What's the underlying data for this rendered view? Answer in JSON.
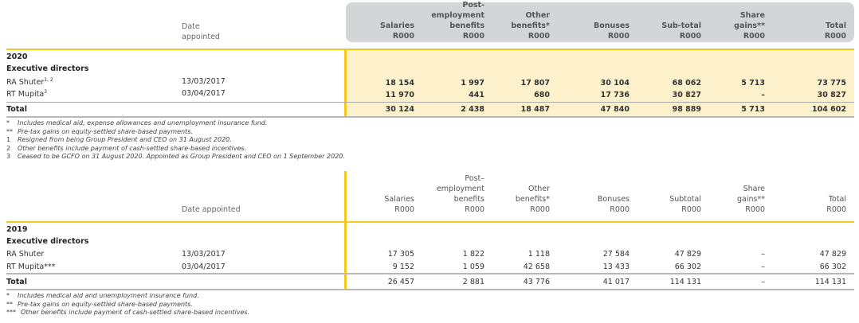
{
  "table_2020": {
    "date_header": [
      "Date",
      "appointed"
    ],
    "columns": [
      {
        "lines": [
          "Salaries",
          "R000"
        ]
      },
      {
        "lines": [
          "Post-",
          "employment",
          "benefits",
          "R000"
        ]
      },
      {
        "lines": [
          "Other",
          "benefits*",
          "R000"
        ]
      },
      {
        "lines": [
          "Bonuses",
          "R000"
        ]
      },
      {
        "lines": [
          "Sub-total",
          "R000"
        ]
      },
      {
        "lines": [
          "Share",
          "gains**",
          "R000"
        ]
      },
      {
        "lines": [
          "Total",
          "R000"
        ]
      }
    ],
    "year": "2020",
    "section": "Executive directors",
    "rows": [
      {
        "name": "RA Shuter",
        "sup": "1, 2",
        "date": "13/03/2017",
        "values": [
          "18 154",
          "1 997",
          "17 807",
          "30 104",
          "68 062",
          "5 713",
          "73 775"
        ]
      },
      {
        "name": "RT Mupita",
        "sup": "3",
        "date": "03/04/2017",
        "values": [
          "11 970",
          "441",
          "680",
          "17 736",
          "30 827",
          "–",
          "30 827"
        ]
      }
    ],
    "total": {
      "label": "Total",
      "values": [
        "30 124",
        "2 438",
        "18 487",
        "47 840",
        "98 889",
        "5 713",
        "104 602"
      ]
    },
    "footnotes": [
      {
        "mark": "*",
        "text": "Includes medical aid, expense allowances and unemployment insurance fund."
      },
      {
        "mark": "**",
        "text": "Pre-tax gains on equity-settled share-based payments."
      },
      {
        "mark": "1",
        "text": "Resigned from being Group President and CEO on 31 August 2020."
      },
      {
        "mark": "2",
        "text": "Other benefits include payment of cash-settled share-based incentives."
      },
      {
        "mark": "3",
        "text": "Ceased to be GCFO on 31 August 2020. Appointed as Group President and CEO on 1 September 2020."
      }
    ]
  },
  "table_2019": {
    "date_header": [
      "Date appointed"
    ],
    "columns": [
      {
        "lines": [
          "Salaries",
          "R000"
        ]
      },
      {
        "lines": [
          "Post–",
          "employment",
          "benefits",
          "R000"
        ]
      },
      {
        "lines": [
          "Other",
          "benefits*",
          "R000"
        ]
      },
      {
        "lines": [
          "Bonuses",
          "R000"
        ]
      },
      {
        "lines": [
          "Subtotal",
          "R000"
        ]
      },
      {
        "lines": [
          "Share",
          "gains**",
          "R000"
        ]
      },
      {
        "lines": [
          "Total",
          "R000"
        ]
      }
    ],
    "year": "2019",
    "section": "Executive directors",
    "rows": [
      {
        "name": "RA Shuter",
        "sup": "",
        "date": "13/03/2017",
        "values": [
          "17 305",
          "1 822",
          "1 118",
          "27 584",
          "47 829",
          "–",
          "47 829"
        ]
      },
      {
        "name": "RT Mupita***",
        "sup": "",
        "date": "03/04/2017",
        "values": [
          "9 152",
          "1 059",
          "42 658",
          "13 433",
          "66 302",
          "–",
          "66 302"
        ]
      }
    ],
    "total": {
      "label": "Total",
      "values": [
        "26 457",
        "2 881",
        "43 776",
        "41 017",
        "114 131",
        "–",
        "114 131"
      ]
    },
    "footnotes": [
      {
        "mark": "*",
        "text": "Includes medical aid and unemployment insurance fund."
      },
      {
        "mark": "**",
        "text": "Pre-tax gains on equity-settled share-based payments."
      },
      {
        "mark": "***",
        "text": "Other benefits include payment of cash-settled share-based incentives."
      }
    ]
  }
}
